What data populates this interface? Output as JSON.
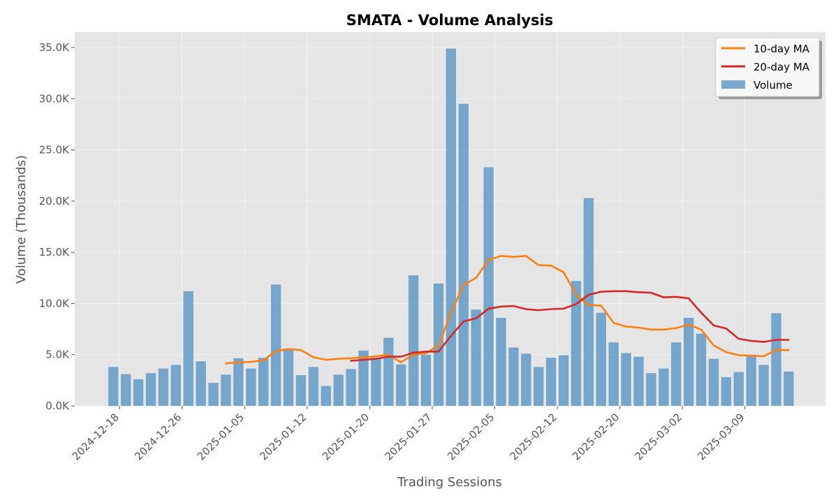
{
  "chart_data": {
    "type": "bar",
    "title": "SMATA - Volume Analysis",
    "xlabel": "Trading Sessions",
    "ylabel": "Volume (Thousands)",
    "ylim": [
      0,
      36500
    ],
    "y_ticks": [
      0,
      5000,
      10000,
      15000,
      20000,
      25000,
      30000,
      35000
    ],
    "y_tick_labels": [
      "0.0K",
      "5.0K",
      "10.0K",
      "15.0K",
      "20.0K",
      "25.0K",
      "30.0K",
      "35.0K"
    ],
    "x_tick_labels": [
      "2024-12-18",
      "2024-12-26",
      "2025-01-05",
      "2025-01-12",
      "2025-01-20",
      "2025-01-27",
      "2025-02-05",
      "2025-02-12",
      "2025-02-20",
      "2025-03-02",
      "2025-03-09"
    ],
    "x_tick_positions": [
      0.5,
      5.5,
      10.5,
      15.5,
      20.5,
      25.5,
      30.5,
      35.5,
      40.5,
      45.5,
      50.5
    ],
    "grid": true,
    "legend_position": "top-right",
    "colors": {
      "plot_background": "#e5e5e5",
      "grid": "#f2f2f2",
      "bar": "#4f8fc1",
      "ma10": "#ff7f0e",
      "ma20": "#d62728"
    },
    "bar_series": {
      "name": "Volume",
      "values": [
        3800,
        3100,
        2600,
        3200,
        3650,
        4000,
        11200,
        4350,
        2250,
        3050,
        4650,
        3650,
        4700,
        11850,
        5600,
        3000,
        3800,
        1950,
        3050,
        3600,
        5400,
        4700,
        6650,
        4050,
        12750,
        5000,
        11950,
        34900,
        29500,
        9400,
        23300,
        8600,
        5700,
        5100,
        3800,
        4700,
        4950,
        12200,
        20300,
        9100,
        6200,
        5150,
        4800,
        3200,
        3650,
        6200,
        8600,
        7050,
        4600,
        2800,
        3300,
        5000,
        4000,
        9050,
        3350
      ]
    },
    "line_series": [
      {
        "name": "10-day MA",
        "start_index": 9,
        "values": [
          4150,
          4250,
          4300,
          4450,
          5350,
          5550,
          5450,
          4750,
          4500,
          4600,
          4650,
          4750,
          4850,
          5000,
          4250,
          5000,
          5150,
          5900,
          9100,
          11800,
          12500,
          14250,
          14650,
          14550,
          14650,
          13750,
          13700,
          13050,
          10850,
          9850,
          9800,
          8100,
          7750,
          7650,
          7450,
          7450,
          7600,
          7950,
          7450,
          5900,
          5250,
          4950,
          4900,
          4850,
          5450,
          5450
        ]
      },
      {
        "name": "20-day MA",
        "start_index": 19,
        "values": [
          4400,
          4500,
          4600,
          4800,
          4800,
          5200,
          5300,
          5300,
          6850,
          8250,
          8550,
          9500,
          9700,
          9750,
          9450,
          9350,
          9450,
          9500,
          9950,
          10850,
          11150,
          11200,
          11200,
          11100,
          11050,
          10600,
          10650,
          10500,
          9100,
          7850,
          7550,
          6550,
          6350,
          6250,
          6450,
          6450
        ]
      }
    ]
  }
}
